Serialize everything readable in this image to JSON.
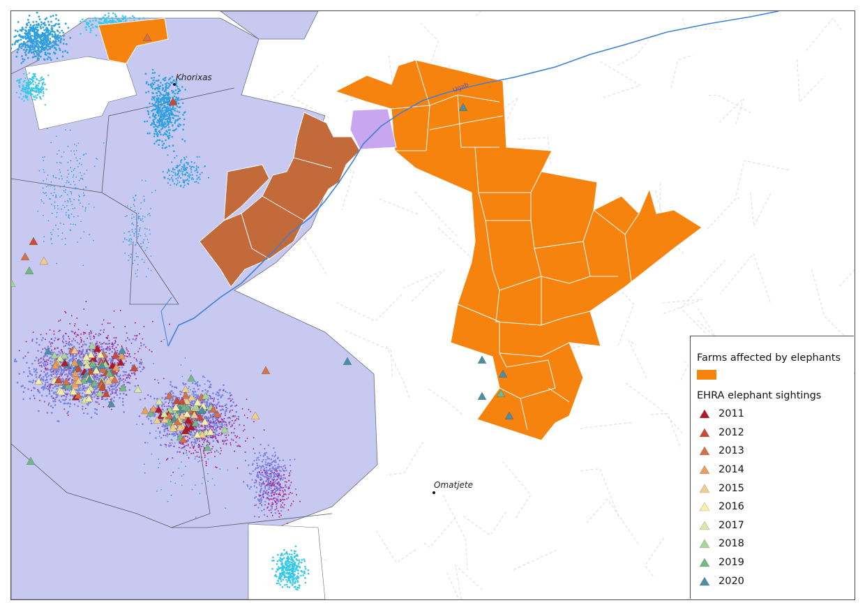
{
  "places": {
    "khorixas": "Khorixas",
    "omatjete": "Omatjete",
    "river": "Ugab"
  },
  "legend": {
    "farms_title": "Farms affected by elephants",
    "farms_color": "#f7830f",
    "sightings_title": "EHRA elephant sightings",
    "years": [
      {
        "year": "2011",
        "color": "#b2182b"
      },
      {
        "year": "2012",
        "color": "#cc4a35"
      },
      {
        "year": "2013",
        "color": "#d67048"
      },
      {
        "year": "2014",
        "color": "#eb9d5e"
      },
      {
        "year": "2015",
        "color": "#f3cc8a"
      },
      {
        "year": "2016",
        "color": "#f9f0a8"
      },
      {
        "year": "2017",
        "color": "#d8e8a8"
      },
      {
        "year": "2018",
        "color": "#a8d698"
      },
      {
        "year": "2019",
        "color": "#74b888"
      },
      {
        "year": "2020",
        "color": "#4a8fa6"
      }
    ]
  },
  "colors": {
    "conservancy_fill": "#c7c9f0",
    "farm_fill": "#f7830f",
    "brown_farm_fill": "#c26a3a",
    "lilac_parcel_fill": "#c9a6f0",
    "river": "#3f7fd6",
    "gps_cyan": "#35c8e8",
    "gps_blue": "#2ea0e0",
    "gps_purple": "#7a82e0",
    "gps_magenta": "#b0238a"
  }
}
